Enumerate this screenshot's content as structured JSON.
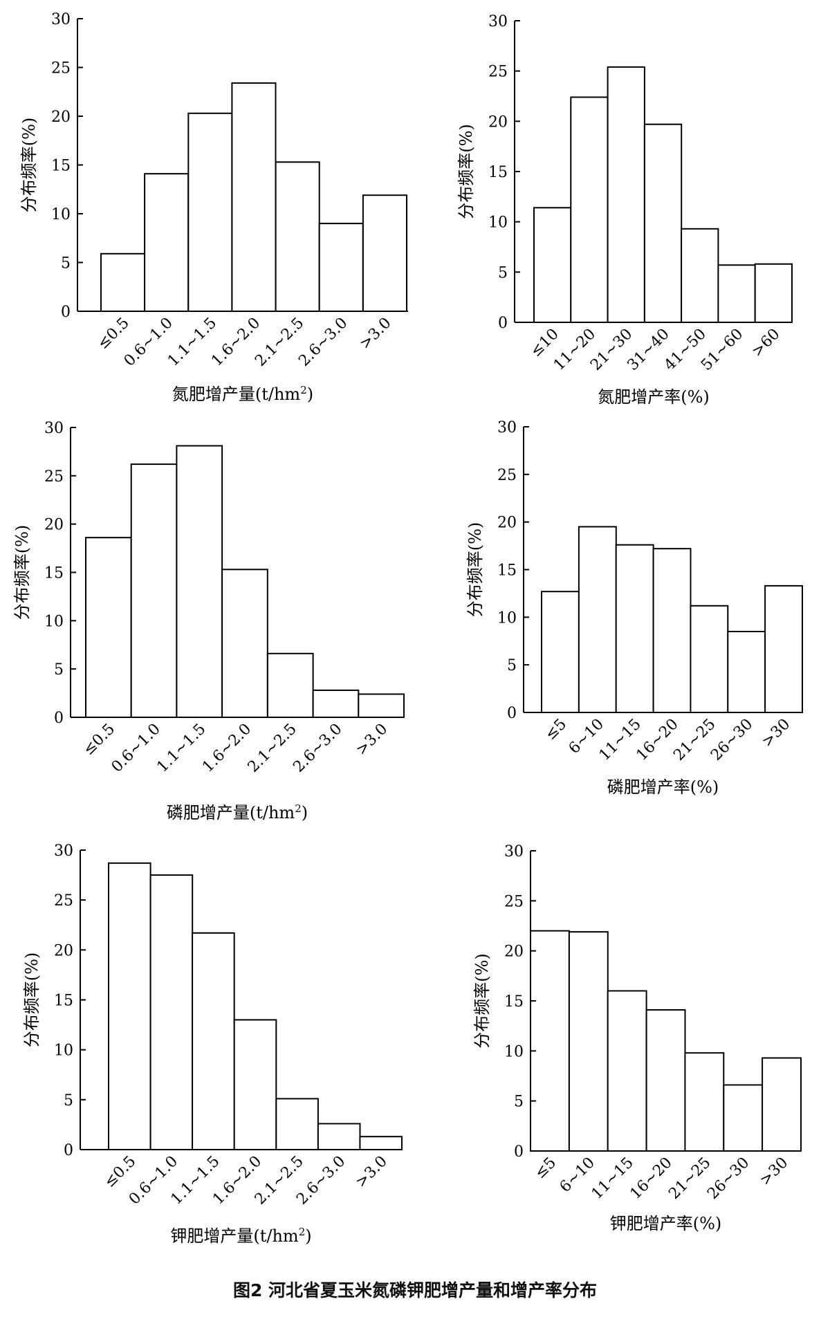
{
  "figure_caption": "图2    河北省夏玉米氮磷钾肥增产量和增产率分布",
  "chart_data": [
    {
      "type": "bar",
      "categories": [
        "≤0.5",
        "0.6~1.0",
        "1.1~1.5",
        "1.6~2.0",
        "2.1~2.5",
        "2.6~3.0",
        ">3.0"
      ],
      "values": [
        5.9,
        14.1,
        20.3,
        23.4,
        15.3,
        9.0,
        11.9
      ],
      "xlabel": "氮肥增产量(t/hm",
      "xlabel_sup": "2",
      "xlabel_tail": ")",
      "ylabel": "分布频率(%)",
      "ylim": [
        0,
        30
      ],
      "yticks": [
        0,
        5,
        10,
        15,
        20,
        25,
        30
      ]
    },
    {
      "type": "bar",
      "categories": [
        "≤10",
        "11~20",
        "21~30",
        "31~40",
        "41~50",
        "51~60",
        ">60"
      ],
      "values": [
        11.4,
        22.4,
        25.4,
        19.7,
        9.3,
        5.7,
        5.8
      ],
      "xlabel": "氮肥增产率(%)",
      "ylabel": "分布频率(%)",
      "ylim": [
        0,
        30
      ],
      "yticks": [
        0,
        5,
        10,
        15,
        20,
        25,
        30
      ]
    },
    {
      "type": "bar",
      "categories": [
        "≤0.5",
        "0.6~1.0",
        "1.1~1.5",
        "1.6~2.0",
        "2.1~2.5",
        "2.6~3.0",
        ">3.0"
      ],
      "values": [
        18.6,
        26.2,
        28.1,
        15.3,
        6.6,
        2.8,
        2.4
      ],
      "xlabel": "磷肥增产量(t/hm",
      "xlabel_sup": "2",
      "xlabel_tail": ")",
      "ylabel": "分布频率(%)",
      "ylim": [
        0,
        30
      ],
      "yticks": [
        0,
        5,
        10,
        15,
        20,
        25,
        30
      ]
    },
    {
      "type": "bar",
      "categories": [
        "≤5",
        "6~10",
        "11~15",
        "16~20",
        "21~25",
        "26~30",
        ">30"
      ],
      "values": [
        12.7,
        19.5,
        17.6,
        17.2,
        11.2,
        8.5,
        13.3
      ],
      "xlabel": "磷肥增产率(%)",
      "ylabel": "分布频率(%)",
      "ylim": [
        0,
        30
      ],
      "yticks": [
        0,
        5,
        10,
        15,
        20,
        25,
        30
      ]
    },
    {
      "type": "bar",
      "categories": [
        "≤0.5",
        "0.6~1.0",
        "1.1~1.5",
        "1.6~2.0",
        "2.1~2.5",
        "2.6~3.0",
        ">3.0"
      ],
      "values": [
        28.7,
        27.5,
        21.7,
        13.0,
        5.1,
        2.6,
        1.3
      ],
      "xlabel": "钾肥增产量(t/hm",
      "xlabel_sup": "2",
      "xlabel_tail": ")",
      "ylabel": "分布频率(%)",
      "ylim": [
        0,
        30
      ],
      "yticks": [
        0,
        5,
        10,
        15,
        20,
        25,
        30
      ]
    },
    {
      "type": "bar",
      "categories": [
        "≤5",
        "6~10",
        "11~15",
        "16~20",
        "21~25",
        "26~30",
        ">30"
      ],
      "values": [
        22.0,
        21.9,
        16.0,
        14.1,
        9.8,
        6.6,
        9.3
      ],
      "xlabel": "钾肥增产率(%)",
      "ylabel": "分布频率(%)",
      "ylim": [
        0,
        30
      ],
      "yticks": [
        0,
        5,
        10,
        15,
        20,
        25,
        30
      ]
    }
  ]
}
